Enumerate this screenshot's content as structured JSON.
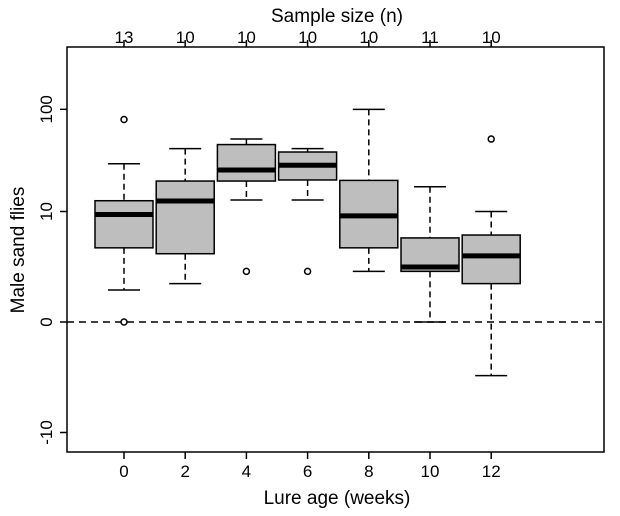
{
  "chart_data": {
    "type": "box",
    "title": "",
    "top_axis_label": "Sample size (n)",
    "xlabel": "Lure age (weeks)",
    "ylabel": "Male sand flies",
    "y_scale": "symmetric-log",
    "y_ticks": [
      -10,
      0,
      10,
      100
    ],
    "y_tick_labels": [
      "-10",
      "0",
      "10",
      "100"
    ],
    "ylim": [
      -13,
      150
    ],
    "reference_line_y": 0,
    "groups": [
      {
        "x": 0,
        "n": 13,
        "whisker_low": 1.0,
        "q1": 4.0,
        "median": 9.3,
        "q3": 12.9,
        "whisker_high": 30.0,
        "outliers": [
          0,
          80
        ]
      },
      {
        "x": 2,
        "n": 10,
        "whisker_low": 1.3,
        "q1": 3.4,
        "median": 12.8,
        "q3": 20.3,
        "whisker_high": 42.0,
        "outliers": []
      },
      {
        "x": 4,
        "n": 10,
        "whisker_low": 13.1,
        "q1": 20.3,
        "median": 26.1,
        "q3": 46.0,
        "whisker_high": 52.0,
        "outliers": [
          2
        ]
      },
      {
        "x": 6,
        "n": 10,
        "whisker_low": 13.1,
        "q1": 20.8,
        "median": 29.0,
        "q3": 39.0,
        "whisker_high": 42.0,
        "outliers": [
          2
        ]
      },
      {
        "x": 8,
        "n": 10,
        "whisker_low": 2.0,
        "q1": 4.0,
        "median": 9.0,
        "q3": 20.6,
        "whisker_high": 100.0,
        "outliers": []
      },
      {
        "x": 10,
        "n": 11,
        "whisker_low": 0.0,
        "q1": 2.0,
        "median": 2.3,
        "q3": 5.2,
        "whisker_high": 17.8,
        "outliers": []
      },
      {
        "x": 12,
        "n": 10,
        "whisker_low": -2.2,
        "q1": 1.3,
        "median": 3.2,
        "q3": 5.6,
        "whisker_high": 10.0,
        "outliers": [
          52
        ]
      }
    ],
    "box_fill": "#bebebe",
    "line_color": "#000000"
  }
}
